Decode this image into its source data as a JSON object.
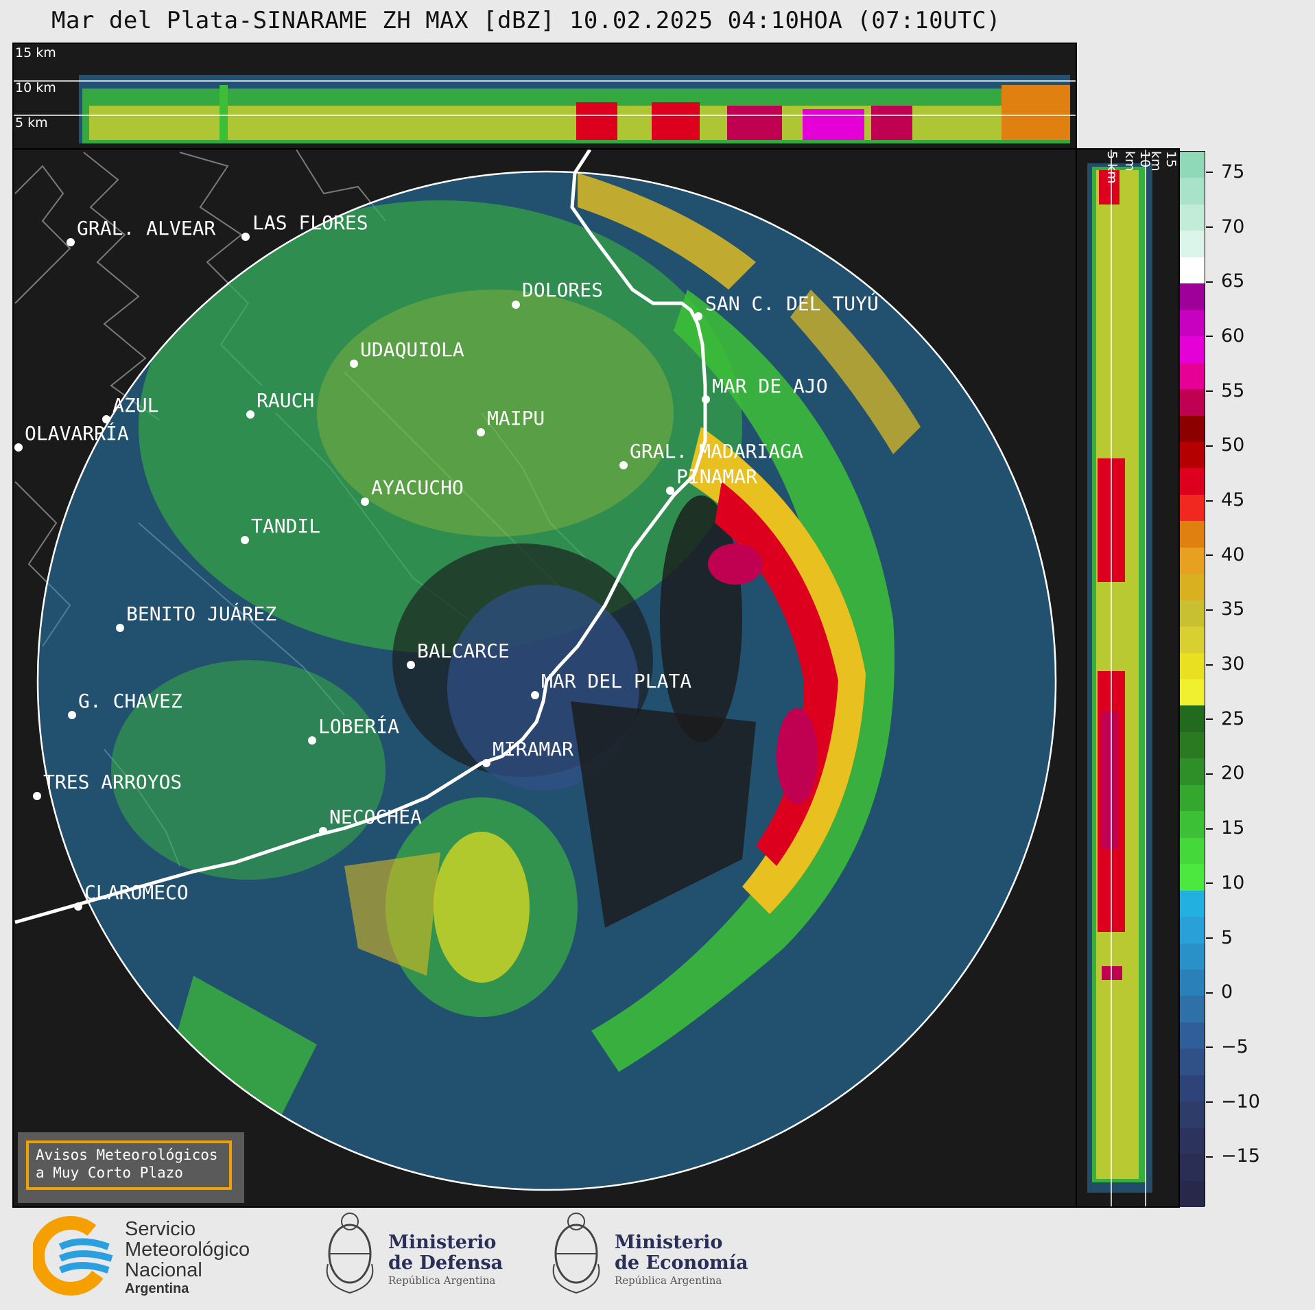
{
  "title": "Mar del Plata-SINARAME ZH MAX [dBZ] 10.02.2025 04:10HOA (07:10UTC)",
  "height_labels": [
    "15 km",
    "10 km",
    "5 km"
  ],
  "cities": [
    {
      "name": "GRAL. ALVEAR"
    },
    {
      "name": "LAS FLORES"
    },
    {
      "name": "DOLORES"
    },
    {
      "name": "SAN C. DEL TUYÚ"
    },
    {
      "name": "UDAQUIOLA"
    },
    {
      "name": "MAR DE AJO"
    },
    {
      "name": "AZUL"
    },
    {
      "name": "RAUCH"
    },
    {
      "name": "OLAVARRÍA"
    },
    {
      "name": "MAIPU"
    },
    {
      "name": "GRAL. MADARIAGA"
    },
    {
      "name": "PINAMAR"
    },
    {
      "name": "AYACUCHO"
    },
    {
      "name": "TANDIL"
    },
    {
      "name": "BENITO JUÁREZ"
    },
    {
      "name": "BALCARCE"
    },
    {
      "name": "MAR DEL PLATA"
    },
    {
      "name": "G. CHAVEZ"
    },
    {
      "name": "LOBERÍA"
    },
    {
      "name": "MIRAMAR"
    },
    {
      "name": "TRES ARROYOS"
    },
    {
      "name": "NECOCHEA"
    },
    {
      "name": "CLAROMECO"
    }
  ],
  "colorbar": {
    "unit": "dBZ",
    "ticks": [
      "75",
      "70",
      "65",
      "60",
      "55",
      "50",
      "45",
      "40",
      "35",
      "30",
      "25",
      "20",
      "15",
      "10",
      "5",
      "0",
      "−5",
      "−10",
      "−15"
    ],
    "colors": [
      "#8fd8b8",
      "#a8e2c8",
      "#c2ecd8",
      "#dcf5ea",
      "#ffffff",
      "#a0009a",
      "#c800c0",
      "#e600d8",
      "#e60096",
      "#c00050",
      "#8c0000",
      "#b40000",
      "#dc001e",
      "#f02820",
      "#e08010",
      "#e8a020",
      "#d8b020",
      "#c8c030",
      "#d8d030",
      "#e8e020",
      "#f0f030",
      "#226a1e",
      "#2a7a22",
      "#2e8e28",
      "#34a82e",
      "#3cc036",
      "#44d83a",
      "#4ce840",
      "#22b0e0",
      "#2aa0d8",
      "#2a90c8",
      "#2a80b8",
      "#3070a8",
      "#305e98",
      "#305088",
      "#2e4478",
      "#2e3c6a",
      "#2c345e",
      "#2a2e54",
      "#28284a"
    ]
  },
  "avisos": {
    "line1": "Avisos Meteorológicos",
    "line2": "a Muy Corto Plazo"
  },
  "logos": {
    "smn": {
      "line1": "Servicio",
      "line2": "Meteorológico",
      "line3": "Nacional",
      "line4": "Argentina"
    },
    "defensa": {
      "line1": "Ministerio",
      "line2": "de Defensa",
      "line3": "República Argentina"
    },
    "economia": {
      "line1": "Ministerio",
      "line2": "de Economía",
      "line3": "República Argentina"
    }
  },
  "palette": {
    "background": "#1a1a1a",
    "coast": "#ffffff",
    "boundary": "#7a7a7a",
    "range_ring": "#ffffff",
    "avisos_border": "#f0a000",
    "smn_orange": "#f5a000",
    "smn_blue": "#2aa0e0"
  }
}
